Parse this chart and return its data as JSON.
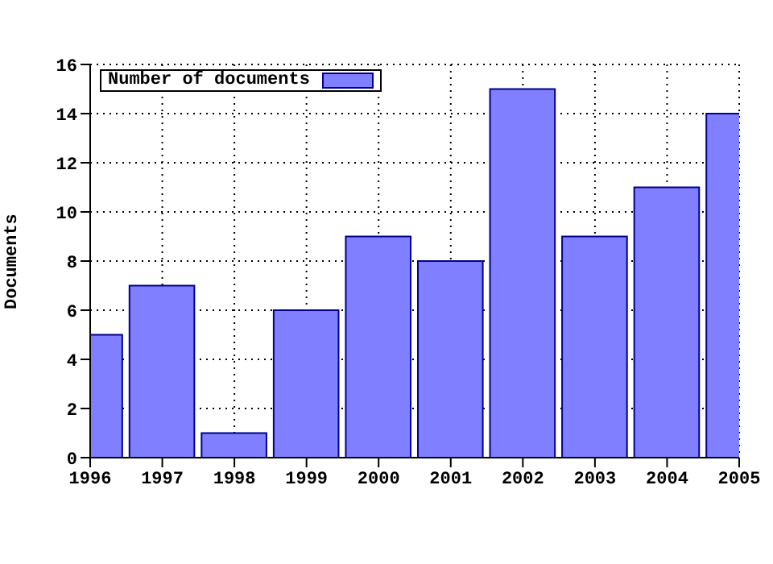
{
  "chart_data": {
    "type": "bar",
    "ylabel": "Documents",
    "x": [
      1996,
      1997,
      1998,
      1999,
      2000,
      2001,
      2002,
      2003,
      2004,
      2005
    ],
    "series": [
      {
        "name": "Number of documents",
        "color": "#7f7fff",
        "values": [
          5,
          7,
          1,
          6,
          9,
          8,
          15,
          9,
          11,
          14
        ]
      }
    ],
    "xlim": [
      1996,
      2005
    ],
    "xticks": [
      1996,
      1997,
      1998,
      1999,
      2000,
      2001,
      2002,
      2003,
      2004,
      2005
    ],
    "ylim": [
      0,
      16
    ],
    "yticks": [
      0,
      2,
      4,
      6,
      8,
      10,
      12,
      14,
      16
    ],
    "grid": true,
    "legend": "top left"
  }
}
